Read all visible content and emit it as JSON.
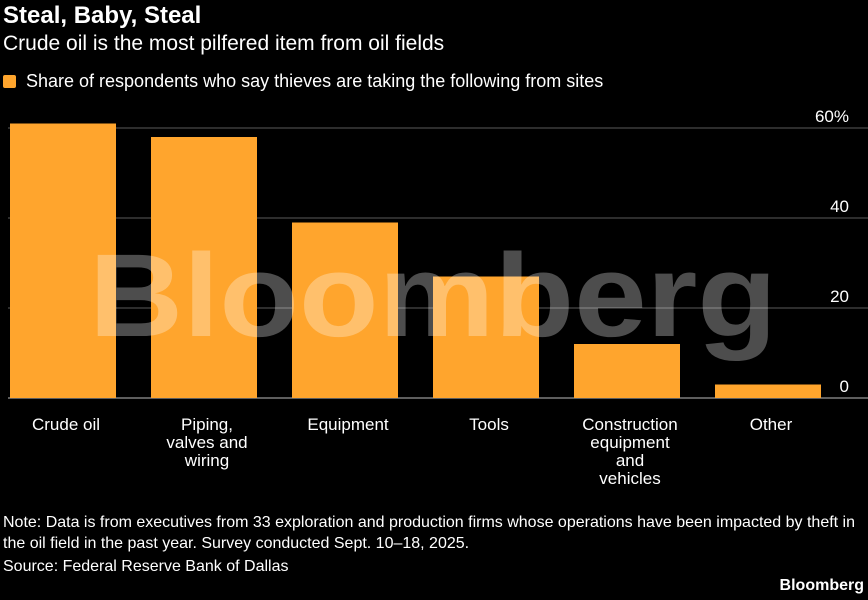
{
  "header": {
    "title": "Steal, Baby, Steal",
    "subtitle": "Crude oil is the most pilfered item from oil fields"
  },
  "footer": {
    "note": "Note: Data is from executives from 33 exploration and production firms whose operations have been impacted by theft in the oil field in the past year. Survey conducted Sept. 10–18, 2025.",
    "source": "Source: Federal Reserve Bank of Dallas",
    "brand": "Bloomberg"
  },
  "watermark": "Bloomberg",
  "colors": {
    "background": "#000000",
    "bar": "#ffa52d",
    "grid": "#5a5a5a",
    "text": "#ffffff"
  },
  "chart_data": {
    "type": "bar",
    "categories": [
      [
        "Crude oil"
      ],
      [
        "Piping,",
        "valves and",
        "wiring"
      ],
      [
        "Equipment"
      ],
      [
        "Tools"
      ],
      [
        "Construction",
        "equipment",
        "and",
        "vehicles"
      ],
      [
        "Other"
      ]
    ],
    "series": [
      {
        "name": "Share of respondents who say thieves are taking the following from sites",
        "values": [
          61,
          58,
          39,
          27,
          12,
          3
        ]
      }
    ],
    "yticks": [
      "0",
      "20",
      "40",
      "60%"
    ],
    "ytick_values": [
      0,
      20,
      40,
      60
    ],
    "ylim": [
      0,
      60
    ],
    "grid": true,
    "legend": "top-left",
    "y_axis_position": "right"
  }
}
